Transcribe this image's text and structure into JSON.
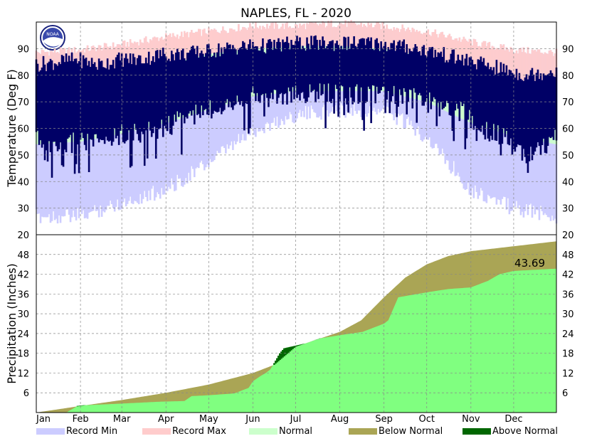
{
  "chart_data": {
    "title": "NAPLES, FL - 2020",
    "months": [
      "Jan",
      "Feb",
      "Mar",
      "Apr",
      "May",
      "Jun",
      "Jul",
      "Aug",
      "Sep",
      "Oct",
      "Nov",
      "Dec"
    ],
    "month_starts": [
      1,
      32,
      61,
      92,
      122,
      153,
      183,
      214,
      245,
      275,
      306,
      336
    ],
    "days": 366,
    "colors": {
      "record_min": "#ccccff",
      "record_max": "#ffcccc",
      "normal": "#ccffcc",
      "observed_temp": "#000066",
      "precip_observed": "#80ff80",
      "below_normal": "#aaa555",
      "above_normal": "#006600"
    },
    "legend": [
      {
        "label": "Record Min",
        "color": "#ccccff"
      },
      {
        "label": "Record Max",
        "color": "#ffcccc"
      },
      {
        "label": "Normal",
        "color": "#ccffcc"
      },
      {
        "label": "Below Normal",
        "color": "#aaa555"
      },
      {
        "label": "Above Normal",
        "color": "#006600"
      }
    ],
    "temperature": {
      "type": "area",
      "ylabel": "Temperature (Deg F)",
      "ylim": [
        20,
        100
      ],
      "yticks": [
        30,
        40,
        50,
        60,
        70,
        80,
        90
      ],
      "grid": true,
      "record_max_approx": [
        [
          1,
          87
        ],
        [
          32,
          88
        ],
        [
          61,
          90
        ],
        [
          92,
          93
        ],
        [
          122,
          95
        ],
        [
          153,
          97
        ],
        [
          183,
          97
        ],
        [
          214,
          98
        ],
        [
          245,
          97
        ],
        [
          275,
          95
        ],
        [
          306,
          91
        ],
        [
          336,
          88
        ],
        [
          366,
          87
        ]
      ],
      "record_min_approx": [
        [
          1,
          30
        ],
        [
          32,
          30
        ],
        [
          61,
          35
        ],
        [
          92,
          40
        ],
        [
          122,
          50
        ],
        [
          153,
          62
        ],
        [
          183,
          68
        ],
        [
          214,
          70
        ],
        [
          245,
          70
        ],
        [
          275,
          60
        ],
        [
          306,
          40
        ],
        [
          336,
          33
        ],
        [
          366,
          30
        ]
      ],
      "normal_high_approx": [
        [
          1,
          77
        ],
        [
          32,
          78
        ],
        [
          61,
          81
        ],
        [
          92,
          84
        ],
        [
          122,
          88
        ],
        [
          153,
          90
        ],
        [
          183,
          91
        ],
        [
          214,
          91
        ],
        [
          245,
          90
        ],
        [
          275,
          87
        ],
        [
          306,
          82
        ],
        [
          336,
          78
        ],
        [
          366,
          77
        ]
      ],
      "normal_low_approx": [
        [
          1,
          54
        ],
        [
          32,
          55
        ],
        [
          61,
          58
        ],
        [
          92,
          62
        ],
        [
          122,
          67
        ],
        [
          153,
          72
        ],
        [
          183,
          74
        ],
        [
          214,
          74
        ],
        [
          245,
          74
        ],
        [
          275,
          70
        ],
        [
          306,
          62
        ],
        [
          336,
          57
        ],
        [
          366,
          54
        ]
      ],
      "observed_range_approx": [
        [
          1,
          62,
          84
        ],
        [
          15,
          55,
          85
        ],
        [
          30,
          60,
          86
        ],
        [
          45,
          58,
          84
        ],
        [
          60,
          62,
          86
        ],
        [
          75,
          62,
          86
        ],
        [
          90,
          64,
          88
        ],
        [
          105,
          68,
          88
        ],
        [
          120,
          70,
          89
        ],
        [
          135,
          74,
          90
        ],
        [
          150,
          76,
          91
        ],
        [
          165,
          76,
          91
        ],
        [
          180,
          76,
          92
        ],
        [
          195,
          77,
          92
        ],
        [
          210,
          77,
          92
        ],
        [
          225,
          77,
          92
        ],
        [
          240,
          77,
          92
        ],
        [
          255,
          76,
          91
        ],
        [
          270,
          75,
          90
        ],
        [
          285,
          72,
          88
        ],
        [
          300,
          70,
          86
        ],
        [
          315,
          64,
          84
        ],
        [
          330,
          60,
          82
        ],
        [
          345,
          54,
          80
        ],
        [
          366,
          60,
          82
        ]
      ]
    },
    "precipitation": {
      "type": "area",
      "ylabel": "Precipitation (Inches)",
      "ylim": [
        0,
        54
      ],
      "yticks": [
        6,
        12,
        18,
        24,
        30,
        36,
        42,
        48
      ],
      "top_tick_label": "20",
      "grid": true,
      "annotation": "43.69",
      "normal_cumulative_approx": [
        [
          1,
          0
        ],
        [
          32,
          2
        ],
        [
          61,
          3.8
        ],
        [
          92,
          6
        ],
        [
          122,
          8.5
        ],
        [
          153,
          12
        ],
        [
          168,
          14.5
        ],
        [
          183,
          20
        ],
        [
          214,
          24.5
        ],
        [
          229,
          28
        ],
        [
          245,
          35
        ],
        [
          260,
          41
        ],
        [
          275,
          45
        ],
        [
          290,
          47.5
        ],
        [
          306,
          49
        ],
        [
          336,
          50.5
        ],
        [
          366,
          52
        ]
      ],
      "observed_cumulative_approx": [
        [
          1,
          0
        ],
        [
          22,
          0
        ],
        [
          30,
          2
        ],
        [
          34,
          2.2
        ],
        [
          55,
          2.6
        ],
        [
          88,
          3.3
        ],
        [
          105,
          3.5
        ],
        [
          110,
          5
        ],
        [
          120,
          5.2
        ],
        [
          140,
          5.8
        ],
        [
          150,
          7.5
        ],
        [
          153,
          9.5
        ],
        [
          158,
          11
        ],
        [
          162,
          12
        ],
        [
          165,
          13
        ],
        [
          168,
          15
        ],
        [
          170,
          16.5
        ],
        [
          172,
          18
        ],
        [
          175,
          19.5
        ],
        [
          180,
          20
        ],
        [
          190,
          21
        ],
        [
          200,
          22.5
        ],
        [
          214,
          23.5
        ],
        [
          230,
          24.5
        ],
        [
          245,
          27
        ],
        [
          248,
          28
        ],
        [
          255,
          35
        ],
        [
          275,
          36.5
        ],
        [
          290,
          37.5
        ],
        [
          306,
          38
        ],
        [
          318,
          40
        ],
        [
          326,
          42
        ],
        [
          336,
          43
        ],
        [
          366,
          43.69
        ]
      ]
    }
  }
}
